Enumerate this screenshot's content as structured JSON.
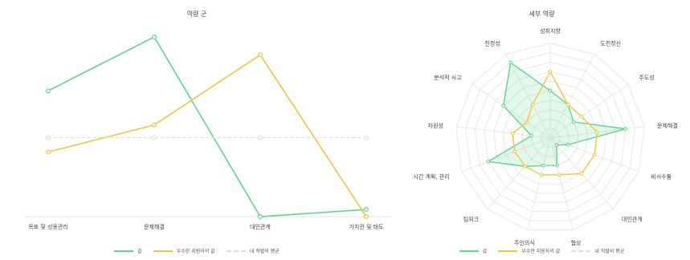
{
  "chart_data": [
    {
      "type": "line",
      "title": "역량 군",
      "categories": [
        "목표 및 성동관리",
        "문제해결",
        "대인관계",
        "가치관 및 태도"
      ],
      "series": [
        {
          "name": "값",
          "color": "#5dd68a",
          "values": [
            7,
            10,
            0,
            0.4
          ]
        },
        {
          "name": "우수한 지원자의 값",
          "color": "#f5c33b",
          "values": [
            3.6,
            5.1,
            9,
            0
          ]
        },
        {
          "name": "내 직렬의 평균",
          "color": "#dddddd",
          "dashed": true,
          "values": [
            4.4,
            4.4,
            4.4,
            4.4
          ]
        }
      ],
      "ylim": [
        0,
        10
      ],
      "grid": false,
      "legend": "bottom"
    },
    {
      "type": "radar",
      "title": "세부 역량",
      "categories": [
        "성취지향",
        "도전정신",
        "주도성",
        "문제해결",
        "비서수툼",
        "대인관계",
        "협상",
        "주인의식",
        "팀워크",
        "시간 계획, 관리",
        "차원성",
        "분석적 사고",
        "진정성"
      ],
      "series": [
        {
          "name": "값",
          "color": "#5dd68a",
          "fill": "rgba(93,214,138,0.18)",
          "values": [
            5,
            4,
            3,
            8,
            2,
            1,
            3,
            3,
            4,
            7,
            2,
            6,
            9
          ]
        },
        {
          "name": "우수한 지원자의 값",
          "color": "#f5c33b",
          "values": [
            7,
            4,
            4,
            5,
            5,
            5,
            4,
            4,
            4,
            4,
            4,
            3,
            4
          ]
        },
        {
          "name": "내 직렬의 평균",
          "color": "#dddddd",
          "dashed": true,
          "values": [
            3,
            3,
            3,
            3,
            3,
            3,
            3,
            3,
            3,
            3,
            3,
            3,
            3
          ]
        }
      ],
      "rlim": [
        0,
        10
      ],
      "legend": "bottom"
    }
  ]
}
